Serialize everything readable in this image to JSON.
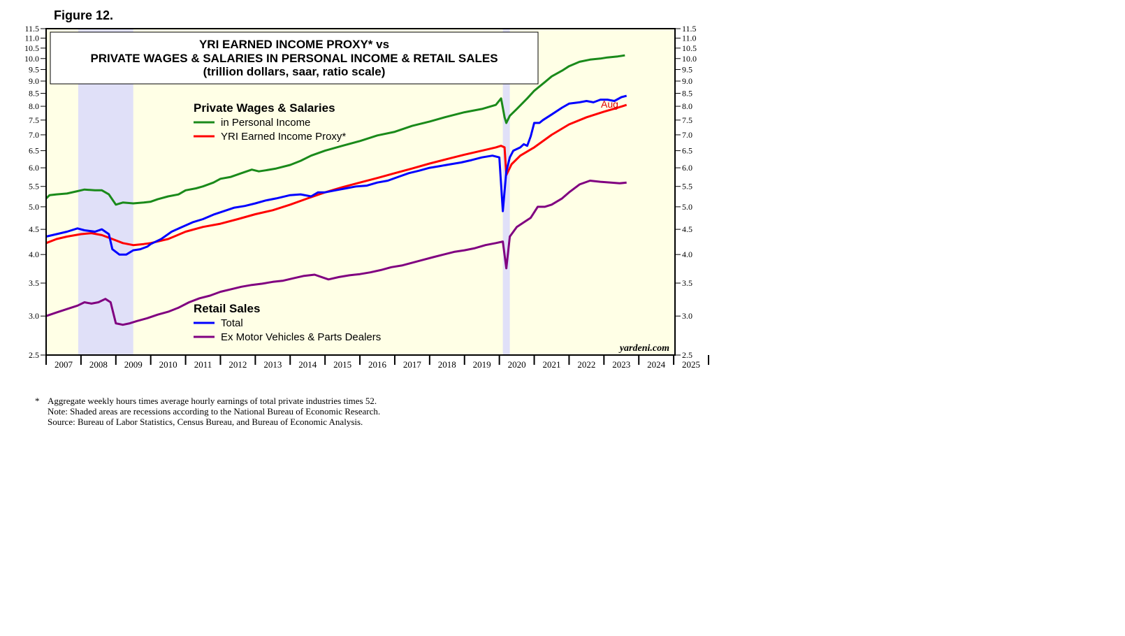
{
  "figure_label": "Figure 12.",
  "notes": {
    "star": "*",
    "line1": "Aggregate weekly hours times average hourly earnings of total private industries times 52.",
    "line2": "Note: Shaded areas are recessions according to the National Bureau of Economic Research.",
    "line3": "Source: Bureau of Labor Statistics, Census Bureau, and Bureau of Economic Analysis."
  },
  "colors": {
    "plot_bg": "#ffffe6",
    "recession": "#e0e0f8",
    "green": "#1a8a1a",
    "red": "#ff0000",
    "blue": "#0000ff",
    "purple": "#800080"
  },
  "chart_data": {
    "type": "line",
    "title_lines": [
      "YRI EARNED INCOME PROXY* vs",
      "PRIVATE WAGES & SALARIES IN PERSONAL INCOME & RETAIL SALES",
      "(trillion dollars, saar, ratio scale)"
    ],
    "y_scale": "log",
    "ylim": [
      2.5,
      11.5
    ],
    "y_ticks": [
      2.5,
      3.0,
      3.5,
      4.0,
      4.5,
      5.0,
      5.5,
      6.0,
      6.5,
      7.0,
      7.5,
      8.0,
      8.5,
      9.0,
      9.5,
      10.0,
      10.5,
      11.0,
      11.5
    ],
    "y_tick_labels": [
      "2.5",
      "3.0",
      "3.5",
      "4.0",
      "4.5",
      "5.0",
      "5.5",
      "6.0",
      "6.5",
      "7.0",
      "7.5",
      "8.0",
      "8.5",
      "9.0",
      "9.5",
      "10.0",
      "10.5",
      "11.0",
      "11.5"
    ],
    "xlim": [
      2007,
      2026
    ],
    "x_ticks": [
      "2007",
      "2008",
      "2009",
      "2010",
      "2011",
      "2012",
      "2013",
      "2014",
      "2015",
      "2016",
      "2017",
      "2018",
      "2019",
      "2020",
      "2021",
      "2022",
      "2023",
      "2024",
      "2025"
    ],
    "recessions": [
      [
        2007.92,
        2009.5
      ],
      [
        2020.1,
        2020.3
      ]
    ],
    "legend_groups": [
      {
        "heading": "Private Wages & Salaries",
        "items": [
          {
            "label": "in Personal Income",
            "color": "#1a8a1a"
          },
          {
            "label": "YRI Earned Income Proxy*",
            "color": "#ff0000"
          }
        ]
      },
      {
        "heading": "Retail Sales",
        "items": [
          {
            "label": "Total",
            "color": "#0000ff"
          },
          {
            "label": "Ex Motor Vehicles & Parts Dealers",
            "color": "#800080"
          }
        ]
      }
    ],
    "annotation": "Aug",
    "credit": "yardeni.com",
    "series": [
      {
        "name": "Private Wages & Salaries in Personal Income",
        "color": "#1a8a1a",
        "x": [
          2007.0,
          2007.1,
          2007.3,
          2007.6,
          2007.9,
          2008.1,
          2008.4,
          2008.6,
          2008.8,
          2009.0,
          2009.2,
          2009.5,
          2009.8,
          2010.0,
          2010.2,
          2010.5,
          2010.8,
          2011.0,
          2011.3,
          2011.5,
          2011.8,
          2012.0,
          2012.3,
          2012.6,
          2012.9,
          2013.1,
          2013.3,
          2013.6,
          2014.0,
          2014.3,
          2014.6,
          2015.0,
          2015.5,
          2016.0,
          2016.5,
          2017.0,
          2017.5,
          2018.0,
          2018.5,
          2019.0,
          2019.5,
          2019.9,
          2020.05,
          2020.15,
          2020.2,
          2020.3,
          2020.5,
          2020.8,
          2021.0,
          2021.3,
          2021.5,
          2021.8,
          2022.0,
          2022.3,
          2022.6,
          2022.9,
          2023.1,
          2023.4,
          2023.6
        ],
        "values": [
          5.2,
          5.28,
          5.3,
          5.32,
          5.38,
          5.42,
          5.4,
          5.4,
          5.3,
          5.05,
          5.1,
          5.08,
          5.1,
          5.12,
          5.18,
          5.25,
          5.3,
          5.4,
          5.45,
          5.5,
          5.6,
          5.7,
          5.75,
          5.85,
          5.95,
          5.9,
          5.93,
          5.98,
          6.08,
          6.2,
          6.35,
          6.5,
          6.65,
          6.8,
          6.98,
          7.1,
          7.3,
          7.45,
          7.62,
          7.78,
          7.9,
          8.05,
          8.3,
          7.6,
          7.4,
          7.65,
          7.9,
          8.3,
          8.6,
          8.95,
          9.2,
          9.45,
          9.65,
          9.85,
          9.95,
          10.0,
          10.05,
          10.1,
          10.15
        ]
      },
      {
        "name": "YRI Earned Income Proxy*",
        "color": "#ff0000",
        "x": [
          2007.0,
          2007.3,
          2007.6,
          2008.0,
          2008.3,
          2008.6,
          2008.9,
          2009.2,
          2009.5,
          2009.8,
          2010.0,
          2010.5,
          2011.0,
          2011.5,
          2012.0,
          2012.5,
          2013.0,
          2013.5,
          2014.0,
          2014.5,
          2015.0,
          2015.5,
          2016.0,
          2016.5,
          2017.0,
          2017.5,
          2018.0,
          2018.5,
          2019.0,
          2019.5,
          2019.9,
          2020.05,
          2020.15,
          2020.2,
          2020.35,
          2020.6,
          2021.0,
          2021.5,
          2022.0,
          2022.5,
          2023.0,
          2023.4,
          2023.65
        ],
        "values": [
          4.22,
          4.3,
          4.35,
          4.4,
          4.42,
          4.38,
          4.3,
          4.22,
          4.18,
          4.2,
          4.22,
          4.3,
          4.45,
          4.55,
          4.62,
          4.72,
          4.83,
          4.92,
          5.05,
          5.2,
          5.35,
          5.48,
          5.6,
          5.72,
          5.85,
          5.98,
          6.12,
          6.25,
          6.38,
          6.5,
          6.6,
          6.65,
          6.6,
          5.8,
          6.1,
          6.35,
          6.6,
          7.0,
          7.35,
          7.6,
          7.8,
          7.95,
          8.05
        ]
      },
      {
        "name": "Retail Sales Total",
        "color": "#0000ff",
        "x": [
          2007.0,
          2007.3,
          2007.6,
          2007.9,
          2008.1,
          2008.4,
          2008.6,
          2008.8,
          2008.9,
          2009.1,
          2009.3,
          2009.5,
          2009.7,
          2009.9,
          2010.0,
          2010.3,
          2010.6,
          2010.9,
          2011.2,
          2011.5,
          2011.8,
          2012.1,
          2012.4,
          2012.7,
          2013.0,
          2013.3,
          2013.6,
          2014.0,
          2014.3,
          2014.6,
          2014.8,
          2015.0,
          2015.3,
          2015.6,
          2015.9,
          2016.2,
          2016.5,
          2016.8,
          2017.1,
          2017.4,
          2017.7,
          2018.0,
          2018.3,
          2018.6,
          2018.9,
          2019.2,
          2019.5,
          2019.8,
          2020.0,
          2020.1,
          2020.2,
          2020.3,
          2020.4,
          2020.5,
          2020.6,
          2020.7,
          2020.8,
          2020.9,
          2021.0,
          2021.15,
          2021.25,
          2021.5,
          2021.8,
          2022.0,
          2022.3,
          2022.5,
          2022.7,
          2022.9,
          2023.1,
          2023.3,
          2023.5,
          2023.65
        ],
        "values": [
          4.35,
          4.4,
          4.45,
          4.52,
          4.48,
          4.45,
          4.5,
          4.4,
          4.1,
          4.0,
          4.0,
          4.08,
          4.1,
          4.15,
          4.2,
          4.3,
          4.45,
          4.55,
          4.65,
          4.72,
          4.82,
          4.9,
          4.98,
          5.02,
          5.08,
          5.15,
          5.2,
          5.28,
          5.3,
          5.25,
          5.35,
          5.35,
          5.4,
          5.45,
          5.5,
          5.52,
          5.6,
          5.65,
          5.75,
          5.85,
          5.92,
          6.0,
          6.05,
          6.1,
          6.15,
          6.22,
          6.3,
          6.35,
          6.3,
          4.9,
          5.9,
          6.3,
          6.5,
          6.55,
          6.6,
          6.7,
          6.65,
          6.95,
          7.4,
          7.4,
          7.5,
          7.7,
          7.95,
          8.1,
          8.15,
          8.2,
          8.15,
          8.25,
          8.25,
          8.2,
          8.35,
          8.4
        ]
      },
      {
        "name": "Retail Sales Ex Motor Vehicles & Parts Dealers",
        "color": "#800080",
        "x": [
          2007.0,
          2007.3,
          2007.6,
          2007.9,
          2008.1,
          2008.3,
          2008.5,
          2008.7,
          2008.85,
          2009.0,
          2009.2,
          2009.4,
          2009.6,
          2009.9,
          2010.2,
          2010.5,
          2010.8,
          2011.1,
          2011.4,
          2011.7,
          2012.0,
          2012.3,
          2012.6,
          2012.9,
          2013.2,
          2013.5,
          2013.8,
          2014.1,
          2014.4,
          2014.7,
          2014.9,
          2015.1,
          2015.4,
          2015.7,
          2016.0,
          2016.3,
          2016.6,
          2016.9,
          2017.2,
          2017.5,
          2017.8,
          2018.1,
          2018.4,
          2018.7,
          2019.0,
          2019.3,
          2019.6,
          2019.9,
          2020.1,
          2020.2,
          2020.3,
          2020.5,
          2020.7,
          2020.9,
          2021.1,
          2021.3,
          2021.5,
          2021.8,
          2022.0,
          2022.3,
          2022.6,
          2022.9,
          2023.2,
          2023.45,
          2023.65
        ],
        "values": [
          3.0,
          3.05,
          3.1,
          3.15,
          3.2,
          3.18,
          3.2,
          3.25,
          3.2,
          2.9,
          2.88,
          2.9,
          2.93,
          2.97,
          3.02,
          3.06,
          3.12,
          3.2,
          3.26,
          3.3,
          3.36,
          3.4,
          3.44,
          3.47,
          3.49,
          3.52,
          3.54,
          3.58,
          3.62,
          3.64,
          3.6,
          3.56,
          3.6,
          3.63,
          3.65,
          3.68,
          3.72,
          3.77,
          3.8,
          3.85,
          3.9,
          3.95,
          4.0,
          4.05,
          4.08,
          4.12,
          4.18,
          4.22,
          4.25,
          3.75,
          4.35,
          4.55,
          4.65,
          4.75,
          5.0,
          5.0,
          5.05,
          5.2,
          5.35,
          5.55,
          5.65,
          5.62,
          5.6,
          5.58,
          5.6
        ]
      }
    ]
  }
}
